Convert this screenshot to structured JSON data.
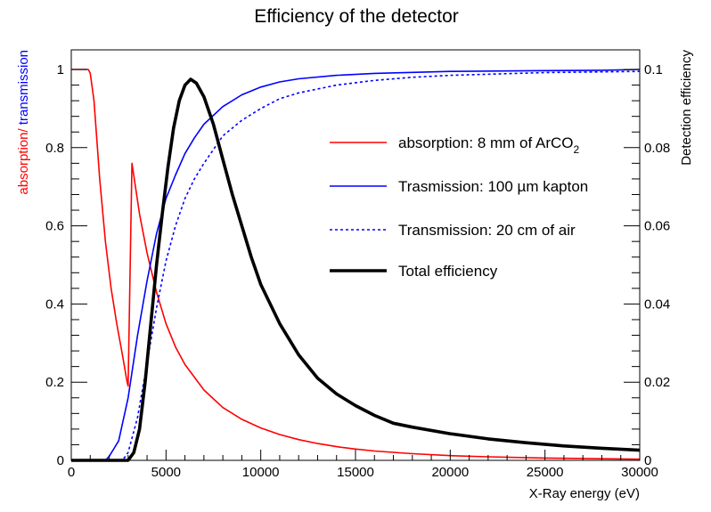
{
  "chart_data": {
    "type": "line",
    "title": "Efficiency of the detector",
    "xlabel": "X-Ray energy (eV)",
    "ylabel_left_parts": [
      {
        "text": "absorption/",
        "color": "#ff0000"
      },
      {
        "text": " transmission",
        "color": "#0000ff"
      }
    ],
    "ylabel_right": "Detection efficiency",
    "xlim": [
      0,
      30000
    ],
    "ylim_left": [
      0,
      1.0
    ],
    "ylim_right": [
      0,
      0.1
    ],
    "x_ticks": [
      0,
      5000,
      10000,
      15000,
      20000,
      25000,
      30000
    ],
    "x_tick_labels": [
      "0",
      "5000",
      "10000",
      "15000",
      "20000",
      "25000",
      "30000"
    ],
    "y_left_ticks": [
      0,
      0.2,
      0.4,
      0.6,
      0.8,
      1.0
    ],
    "y_left_tick_labels": [
      "0",
      "0.2",
      "0.4",
      "0.6",
      "0.8",
      "1"
    ],
    "y_right_ticks": [
      0,
      0.02,
      0.04,
      0.06,
      0.08,
      0.1
    ],
    "y_right_tick_labels": [
      "0",
      "0.02",
      "0.04",
      "0.06",
      "0.08",
      "0.1"
    ],
    "legend_position": "upper-right",
    "series": [
      {
        "name": "absorption: 8 mm of ArCO2",
        "legend_main": "absorption: 8 mm of ArCO",
        "legend_sub": "2",
        "color": "#ff0000",
        "width": 1.6,
        "dash": "",
        "axis": "left",
        "points": [
          [
            0,
            1.0
          ],
          [
            900,
            1.0
          ],
          [
            1000,
            0.99
          ],
          [
            1200,
            0.92
          ],
          [
            1500,
            0.72
          ],
          [
            1800,
            0.56
          ],
          [
            2100,
            0.44
          ],
          [
            2400,
            0.35
          ],
          [
            2700,
            0.27
          ],
          [
            2950,
            0.2
          ],
          [
            3000,
            0.19
          ],
          [
            3200,
            0.76
          ],
          [
            3600,
            0.63
          ],
          [
            4000,
            0.53
          ],
          [
            4500,
            0.43
          ],
          [
            5000,
            0.35
          ],
          [
            5500,
            0.29
          ],
          [
            6000,
            0.245
          ],
          [
            7000,
            0.18
          ],
          [
            8000,
            0.135
          ],
          [
            9000,
            0.105
          ],
          [
            10000,
            0.083
          ],
          [
            11000,
            0.066
          ],
          [
            12000,
            0.053
          ],
          [
            13000,
            0.043
          ],
          [
            14000,
            0.035
          ],
          [
            15000,
            0.029
          ],
          [
            16000,
            0.024
          ],
          [
            18000,
            0.017
          ],
          [
            20000,
            0.012
          ],
          [
            22000,
            0.009
          ],
          [
            25000,
            0.006
          ],
          [
            28000,
            0.004
          ],
          [
            30000,
            0.003
          ]
        ]
      },
      {
        "name": "Trasmission: 100 µm kapton",
        "legend_main": "Trasmission: 100 µm kapton",
        "legend_sub": "",
        "color": "#0000ff",
        "width": 1.6,
        "dash": "",
        "axis": "left",
        "points": [
          [
            0,
            0
          ],
          [
            1800,
            0
          ],
          [
            2000,
            0.01
          ],
          [
            2500,
            0.05
          ],
          [
            3000,
            0.16
          ],
          [
            3500,
            0.32
          ],
          [
            4000,
            0.46
          ],
          [
            4500,
            0.58
          ],
          [
            5000,
            0.67
          ],
          [
            5500,
            0.73
          ],
          [
            6000,
            0.785
          ],
          [
            6500,
            0.825
          ],
          [
            7000,
            0.86
          ],
          [
            8000,
            0.905
          ],
          [
            9000,
            0.935
          ],
          [
            10000,
            0.955
          ],
          [
            11000,
            0.968
          ],
          [
            12000,
            0.976
          ],
          [
            14000,
            0.985
          ],
          [
            16000,
            0.99
          ],
          [
            20000,
            0.995
          ],
          [
            25000,
            0.997
          ],
          [
            28000,
            0.998
          ],
          [
            30000,
            1.0
          ]
        ]
      },
      {
        "name": "Transmission: 20 cm of air",
        "legend_main": "Transmission: 20 cm of air",
        "legend_sub": "",
        "color": "#0000ff",
        "width": 1.6,
        "dash": "3 3",
        "axis": "left",
        "points": [
          [
            0,
            0
          ],
          [
            2700,
            0
          ],
          [
            3000,
            0.02
          ],
          [
            3500,
            0.11
          ],
          [
            4000,
            0.25
          ],
          [
            4500,
            0.39
          ],
          [
            5000,
            0.51
          ],
          [
            5500,
            0.6
          ],
          [
            6000,
            0.67
          ],
          [
            6500,
            0.72
          ],
          [
            7000,
            0.76
          ],
          [
            8000,
            0.83
          ],
          [
            9000,
            0.87
          ],
          [
            10000,
            0.9
          ],
          [
            11000,
            0.925
          ],
          [
            12000,
            0.94
          ],
          [
            14000,
            0.96
          ],
          [
            16000,
            0.972
          ],
          [
            18000,
            0.98
          ],
          [
            20000,
            0.985
          ],
          [
            25000,
            0.992
          ],
          [
            30000,
            0.995
          ]
        ]
      },
      {
        "name": "Total efficiency",
        "legend_main": "Total efficiency",
        "legend_sub": "",
        "color": "#000000",
        "width": 3.6,
        "dash": "",
        "axis": "right",
        "points": [
          [
            0,
            0
          ],
          [
            3000,
            0
          ],
          [
            3300,
            0.002
          ],
          [
            3600,
            0.008
          ],
          [
            3900,
            0.02
          ],
          [
            4200,
            0.035
          ],
          [
            4500,
            0.05
          ],
          [
            4800,
            0.063
          ],
          [
            5100,
            0.075
          ],
          [
            5400,
            0.085
          ],
          [
            5700,
            0.092
          ],
          [
            6000,
            0.096
          ],
          [
            6300,
            0.0975
          ],
          [
            6600,
            0.0965
          ],
          [
            7000,
            0.093
          ],
          [
            7500,
            0.086
          ],
          [
            8000,
            0.077
          ],
          [
            8500,
            0.068
          ],
          [
            9000,
            0.06
          ],
          [
            9500,
            0.052
          ],
          [
            10000,
            0.045
          ],
          [
            11000,
            0.035
          ],
          [
            12000,
            0.027
          ],
          [
            13000,
            0.021
          ],
          [
            14000,
            0.017
          ],
          [
            15000,
            0.014
          ],
          [
            16000,
            0.0115
          ],
          [
            17000,
            0.0095
          ],
          [
            18000,
            0.0085
          ],
          [
            20000,
            0.0068
          ],
          [
            22000,
            0.0055
          ],
          [
            24000,
            0.0045
          ],
          [
            26000,
            0.0037
          ],
          [
            28000,
            0.0031
          ],
          [
            30000,
            0.0026
          ]
        ]
      }
    ]
  }
}
